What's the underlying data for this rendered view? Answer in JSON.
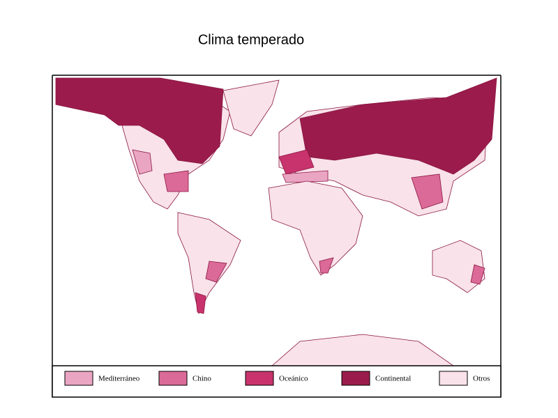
{
  "title": "Clima temperado",
  "legend": [
    {
      "label": "Mediterráneo",
      "color": "#eaa5c3"
    },
    {
      "label": "Chino",
      "color": "#db6a98"
    },
    {
      "label": "Oceánico",
      "color": "#c8336d"
    },
    {
      "label": "Continental",
      "color": "#9b1c4c"
    },
    {
      "label": "Otros",
      "color": "#f9e2ea"
    }
  ]
}
